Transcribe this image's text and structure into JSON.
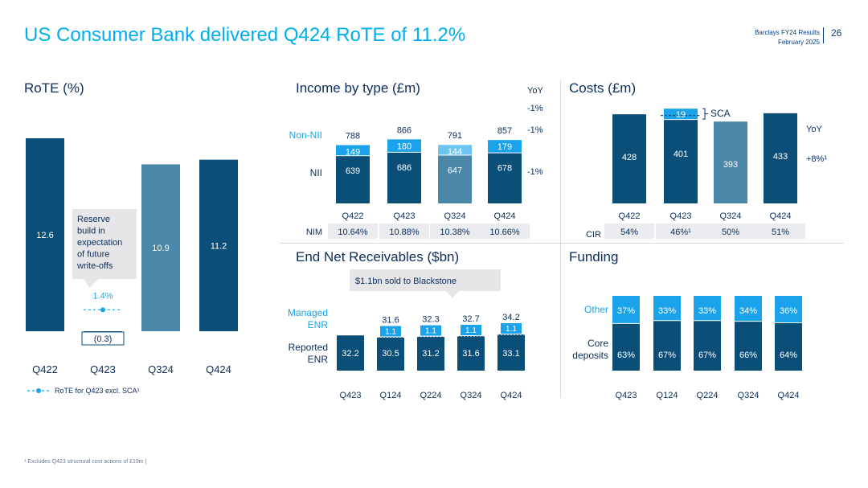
{
  "page": {
    "title": "US Consumer Bank delivered Q424 RoTE of 11.2%",
    "header_line1": "Barclays FY24 Results",
    "header_line2": "February 2025",
    "page_number": "26",
    "footnote": "¹ Excludes Q423 structural cost actions of £19m |"
  },
  "colors": {
    "dark_navy": "#0b4f79",
    "mid_blue": "#4a87a8",
    "light_blue": "#1aa3ea",
    "title_cyan": "#00aeef",
    "text_navy": "#0b2d5b",
    "callout_grey": "#e6e6e8"
  },
  "chart_data": [
    {
      "id": "rote",
      "type": "bar",
      "title": "RoTE (%)",
      "categories": [
        "Q422",
        "Q423",
        "Q324",
        "Q424"
      ],
      "values": [
        12.6,
        -0.3,
        10.9,
        11.2
      ],
      "value_labels": [
        "12.6",
        "(0.3)",
        "10.9",
        "11.2"
      ],
      "bar_colors": [
        "#0b4f79",
        "#0b4f79",
        "#4a87a8",
        "#0b4f79"
      ],
      "ylim": [
        -1,
        16
      ],
      "marker": {
        "category": "Q423",
        "value": 1.4,
        "label": "1.4%"
      },
      "legend": "RoTE for Q423 excl. SCA¹",
      "callout": [
        "Reserve",
        "build in",
        "expectation",
        "of future",
        "write-offs"
      ]
    },
    {
      "id": "income",
      "type": "bar",
      "stacked": true,
      "title": "Income by type (£m)",
      "categories": [
        "Q422",
        "Q423",
        "Q324",
        "Q424"
      ],
      "series": [
        {
          "name": "NII",
          "values": [
            639,
            686,
            647,
            678
          ]
        },
        {
          "name": "Non-NII",
          "values": [
            149,
            180,
            144,
            179
          ]
        }
      ],
      "totals": [
        "788",
        "866",
        "791",
        "857"
      ],
      "bar_colors": [
        "#0b4f79",
        "#0b4f79",
        "#4a87a8",
        "#0b4f79"
      ],
      "top_colors": [
        "#1aa3ea",
        "#1aa3ea",
        "#6cc4f0",
        "#1aa3ea"
      ],
      "ylim": [
        0,
        900
      ],
      "yoy_label": "YoY",
      "yoy": [
        "-1%",
        "-1%",
        "-1%"
      ],
      "nim_label": "NIM",
      "nim": [
        "10.64%",
        "10.88%",
        "10.38%",
        "10.66%"
      ]
    },
    {
      "id": "costs",
      "type": "bar",
      "stacked": true,
      "title": "Costs (£m)",
      "categories": [
        "Q422",
        "Q423",
        "Q324",
        "Q424"
      ],
      "series": [
        {
          "name": "Costs",
          "values": [
            428,
            401,
            393,
            433
          ]
        },
        {
          "name": "SCA",
          "values": [
            0,
            19,
            0,
            0
          ]
        }
      ],
      "bar_colors": [
        "#0b4f79",
        "#0b4f79",
        "#4a87a8",
        "#0b4f79"
      ],
      "ylim": [
        0,
        470
      ],
      "sca_label": "SCA",
      "yoy_label": "YoY",
      "yoy": "+8%¹",
      "cir_label": "CIR",
      "cir": [
        "54%",
        "46%¹",
        "50%",
        "51%"
      ]
    },
    {
      "id": "enr",
      "type": "bar",
      "stacked": true,
      "title": "End Net Receivables ($bn)",
      "categories": [
        "Q423",
        "Q124",
        "Q224",
        "Q324",
        "Q424"
      ],
      "series": [
        {
          "name": "Reported ENR",
          "values": [
            32.2,
            30.5,
            31.2,
            31.6,
            33.1
          ]
        },
        {
          "name": "Managed ENR",
          "values": [
            0,
            1.1,
            1.1,
            1.1,
            1.1
          ]
        }
      ],
      "totals": [
        "",
        "31.6",
        "32.3",
        "32.7",
        "34.2"
      ],
      "ylim": [
        0,
        36
      ],
      "series_labels": {
        "managed": [
          "Managed",
          "ENR"
        ],
        "reported": [
          "Reported",
          "ENR"
        ]
      },
      "callout": "$1.1bn sold to Blackstone"
    },
    {
      "id": "funding",
      "type": "bar",
      "stacked": true,
      "title": "Funding",
      "categories": [
        "Q423",
        "Q124",
        "Q224",
        "Q324",
        "Q424"
      ],
      "series": [
        {
          "name": "Core deposits",
          "values": [
            63,
            67,
            67,
            66,
            64
          ],
          "labels": [
            "63%",
            "67%",
            "67%",
            "66%",
            "64%"
          ]
        },
        {
          "name": "Other",
          "values": [
            37,
            33,
            33,
            34,
            36
          ],
          "labels": [
            "37%",
            "33%",
            "33%",
            "34%",
            "36%"
          ]
        }
      ],
      "ylim": [
        0,
        100
      ],
      "series_labels": {
        "other": [
          "Other"
        ],
        "core": [
          "Core",
          "deposits"
        ]
      }
    }
  ]
}
